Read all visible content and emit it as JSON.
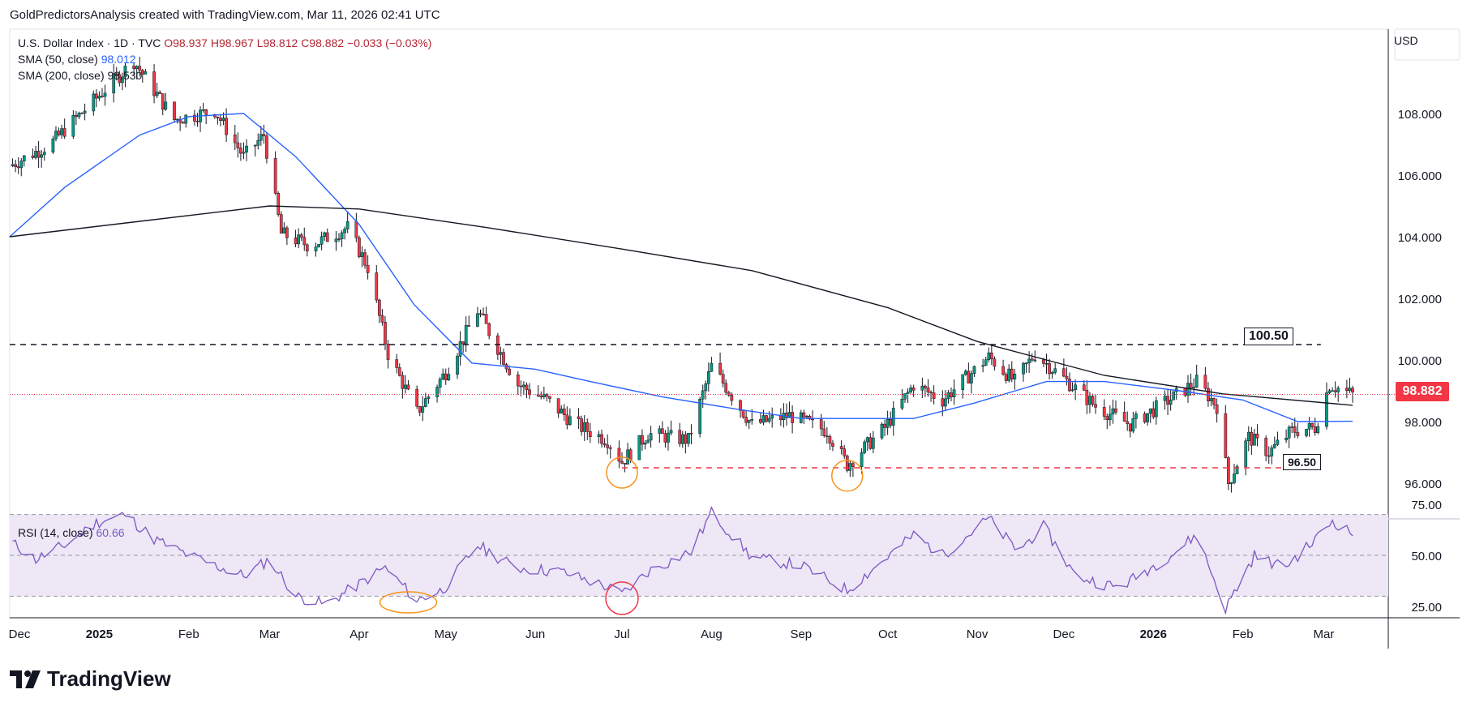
{
  "header": {
    "credit": "GoldPredictorsAnalysis created with TradingView.com, Mar 11, 2026 02:41 UTC"
  },
  "legend": {
    "symbol": "U.S. Dollar Index · 1D · TVC",
    "open": "O98.937",
    "high": "H98.967",
    "low": "L98.812",
    "close": "C98.882",
    "change": "−0.033 (−0.03%)",
    "sma50_label": "SMA (50, close)",
    "sma50_value": "98.012",
    "sma200_label": "SMA (200, close)",
    "sma200_value": "98.530",
    "rsi_label": "RSI (14, close)",
    "rsi_value": "60.66"
  },
  "currency": "USD",
  "last_price_tag": "98.882",
  "annotations": {
    "resistance_label": "100.50",
    "support_label": "96.50"
  },
  "logo": {
    "text": "TradingView"
  },
  "colors": {
    "up": "#089981",
    "down": "#f23645",
    "sma50": "#2962ff",
    "sma200": "#131722",
    "rsi": "#7e57c2",
    "rsi_band": "#ede7f6",
    "resistance": "#131722",
    "support": "#f23645",
    "circle_orange": "#f7931a",
    "circle_red": "#f23645"
  },
  "chart_data": [
    {
      "type": "line",
      "title": "U.S. Dollar Index · 1D · TVC",
      "ylim": [
        95,
        110
      ],
      "y_ticks": [
        "108.000",
        "106.000",
        "104.000",
        "102.000",
        "100.000",
        "98.000",
        "96.000"
      ],
      "x_ticks": [
        "Dec",
        "2025",
        "Feb",
        "Mar",
        "Apr",
        "May",
        "Jun",
        "Jul",
        "Aug",
        "Sep",
        "Oct",
        "Nov",
        "Dec",
        "2026",
        "Feb",
        "Mar"
      ],
      "x_domain": [
        "2024-12-01",
        "2026-03-11"
      ],
      "price_path": [
        [
          "2024-12-01",
          106.3
        ],
        [
          "2024-12-15",
          107.0
        ],
        [
          "2024-12-31",
          108.5
        ],
        [
          "2025-01-13",
          109.7
        ],
        [
          "2025-01-27",
          107.8
        ],
        [
          "2025-02-10",
          108.1
        ],
        [
          "2025-02-20",
          106.6
        ],
        [
          "2025-02-27",
          107.3
        ],
        [
          "2025-03-05",
          104.1
        ],
        [
          "2025-03-15",
          103.7
        ],
        [
          "2025-03-28",
          104.3
        ],
        [
          "2025-04-04",
          103.0
        ],
        [
          "2025-04-11",
          100.2
        ],
        [
          "2025-04-21",
          98.3
        ],
        [
          "2025-05-01",
          99.6
        ],
        [
          "2025-05-12",
          101.6
        ],
        [
          "2025-05-26",
          99.2
        ],
        [
          "2025-06-05",
          98.7
        ],
        [
          "2025-06-15",
          97.9
        ],
        [
          "2025-06-26",
          97.4
        ],
        [
          "2025-07-01",
          96.7
        ],
        [
          "2025-07-10",
          97.6
        ],
        [
          "2025-07-24",
          97.4
        ],
        [
          "2025-08-01",
          99.8
        ],
        [
          "2025-08-15",
          97.9
        ],
        [
          "2025-08-28",
          98.2
        ],
        [
          "2025-09-10",
          97.7
        ],
        [
          "2025-09-17",
          96.6
        ],
        [
          "2025-09-30",
          97.8
        ],
        [
          "2025-10-10",
          99.2
        ],
        [
          "2025-10-20",
          98.7
        ],
        [
          "2025-11-05",
          100.1
        ],
        [
          "2025-11-14",
          99.3
        ],
        [
          "2025-11-21",
          100.2
        ],
        [
          "2025-12-01",
          99.4
        ],
        [
          "2025-12-12",
          98.5
        ],
        [
          "2025-12-24",
          97.9
        ],
        [
          "2026-01-08",
          98.8
        ],
        [
          "2026-01-16",
          99.3
        ],
        [
          "2026-01-23",
          98.5
        ],
        [
          "2026-01-27",
          96.0
        ],
        [
          "2026-02-03",
          97.5
        ],
        [
          "2026-02-10",
          97.0
        ],
        [
          "2026-02-18",
          97.7
        ],
        [
          "2026-02-26",
          97.8
        ],
        [
          "2026-03-03",
          99.2
        ],
        [
          "2026-03-11",
          98.88
        ]
      ],
      "series": [
        {
          "name": "SMA (50, close)",
          "points": [
            [
              "2024-12-01",
              104.0
            ],
            [
              "2024-12-20",
              105.6
            ],
            [
              "2025-01-15",
              107.3
            ],
            [
              "2025-02-01",
              107.9
            ],
            [
              "2025-02-20",
              108.0
            ],
            [
              "2025-03-10",
              106.6
            ],
            [
              "2025-04-01",
              104.4
            ],
            [
              "2025-04-20",
              101.8
            ],
            [
              "2025-05-10",
              99.9
            ],
            [
              "2025-06-01",
              99.7
            ],
            [
              "2025-06-20",
              99.3
            ],
            [
              "2025-07-15",
              98.8
            ],
            [
              "2025-08-10",
              98.4
            ],
            [
              "2025-09-01",
              98.1
            ],
            [
              "2025-09-20",
              98.1
            ],
            [
              "2025-10-10",
              98.1
            ],
            [
              "2025-10-31",
              98.6
            ],
            [
              "2025-11-25",
              99.3
            ],
            [
              "2025-12-15",
              99.3
            ],
            [
              "2026-01-10",
              99.0
            ],
            [
              "2026-02-01",
              98.7
            ],
            [
              "2026-02-20",
              98.0
            ],
            [
              "2026-03-11",
              98.01
            ]
          ]
        },
        {
          "name": "SMA (200, close)",
          "points": [
            [
              "2024-12-01",
              104.0
            ],
            [
              "2025-01-15",
              104.5
            ],
            [
              "2025-03-01",
              105.0
            ],
            [
              "2025-04-01",
              104.9
            ],
            [
              "2025-05-15",
              104.3
            ],
            [
              "2025-07-01",
              103.6
            ],
            [
              "2025-08-15",
              102.9
            ],
            [
              "2025-10-01",
              101.7
            ],
            [
              "2025-11-01",
              100.6
            ],
            [
              "2025-12-15",
              99.5
            ],
            [
              "2026-01-25",
              98.9
            ],
            [
              "2026-03-11",
              98.53
            ]
          ]
        }
      ],
      "levels": [
        {
          "value": 100.5,
          "label": "100.50",
          "style": "dashed",
          "from": "2024-12-01",
          "to": "2026-02-28"
        },
        {
          "value": 96.5,
          "label": "96.50",
          "style": "dashed",
          "from": "2025-07-01",
          "to": "2026-02-15"
        }
      ],
      "last_price": 98.882
    },
    {
      "type": "line",
      "title": "RSI (14, close)",
      "ylim": [
        20,
        80
      ],
      "y_ticks": [
        "75.00",
        "50.00",
        "25.00"
      ],
      "band": [
        30,
        70
      ],
      "series": [
        {
          "name": "RSI (14, close)",
          "points": [
            [
              "2024-12-01",
              57
            ],
            [
              "2024-12-10",
              48
            ],
            [
              "2024-12-20",
              55
            ],
            [
              "2024-12-31",
              66
            ],
            [
              "2025-01-10",
              70
            ],
            [
              "2025-01-20",
              58
            ],
            [
              "2025-02-01",
              50
            ],
            [
              "2025-02-10",
              45
            ],
            [
              "2025-02-20",
              40
            ],
            [
              "2025-03-01",
              48
            ],
            [
              "2025-03-10",
              30
            ],
            [
              "2025-03-20",
              26
            ],
            [
              "2025-03-31",
              35
            ],
            [
              "2025-04-10",
              44
            ],
            [
              "2025-04-21",
              28
            ],
            [
              "2025-04-30",
              33
            ],
            [
              "2025-05-12",
              55
            ],
            [
              "2025-05-25",
              44
            ],
            [
              "2025-06-10",
              42
            ],
            [
              "2025-06-25",
              35
            ],
            [
              "2025-07-01",
              31
            ],
            [
              "2025-07-10",
              42
            ],
            [
              "2025-07-25",
              52
            ],
            [
              "2025-08-01",
              71
            ],
            [
              "2025-08-15",
              49
            ],
            [
              "2025-09-01",
              45
            ],
            [
              "2025-09-17",
              33
            ],
            [
              "2025-09-30",
              48
            ],
            [
              "2025-10-10",
              60
            ],
            [
              "2025-10-20",
              50
            ],
            [
              "2025-11-05",
              68
            ],
            [
              "2025-11-15",
              52
            ],
            [
              "2025-11-24",
              64
            ],
            [
              "2025-12-05",
              40
            ],
            [
              "2025-12-20",
              34
            ],
            [
              "2026-01-08",
              51
            ],
            [
              "2026-01-16",
              60
            ],
            [
              "2026-01-26",
              24
            ],
            [
              "2026-02-05",
              50
            ],
            [
              "2026-02-15",
              44
            ],
            [
              "2026-02-25",
              56
            ],
            [
              "2026-03-04",
              67
            ],
            [
              "2026-03-11",
              60.66
            ]
          ]
        }
      ],
      "highlight_circles": [
        {
          "date": "2025-04-18",
          "value": 27,
          "color": "orange"
        },
        {
          "date": "2025-07-01",
          "value": 29,
          "color": "red"
        }
      ]
    }
  ],
  "price_circles": [
    {
      "date": "2025-07-01",
      "value": 96.5
    },
    {
      "date": "2025-09-17",
      "value": 96.4
    }
  ]
}
